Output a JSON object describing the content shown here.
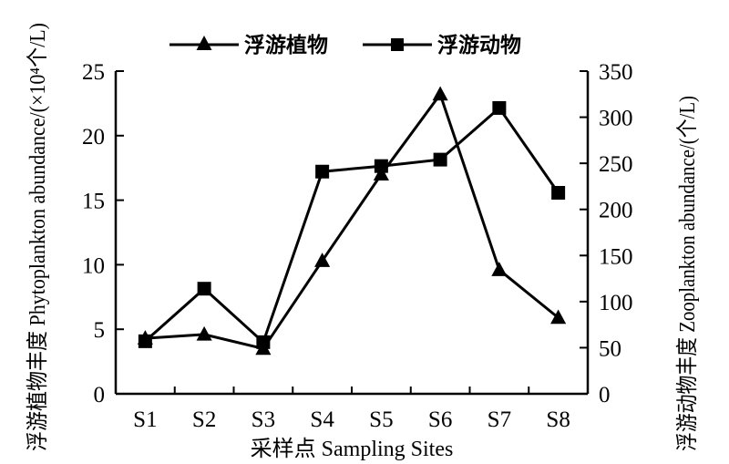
{
  "chart_data": {
    "type": "line",
    "categories": [
      "S1",
      "S2",
      "S3",
      "S4",
      "S5",
      "S6",
      "S7",
      "S8"
    ],
    "xlabel": "采样点 Sampling Sites",
    "ylabel_left": "浮游植物丰度 Phytoplankton  abundance/(×10⁴个/L)",
    "ylabel_right": "浮游动物丰度 Zooplankton abundance/(个/L)",
    "ylim_left": [
      0,
      25
    ],
    "yticks_left": [
      0,
      5,
      10,
      15,
      20,
      25
    ],
    "ylim_right": [
      0,
      350
    ],
    "yticks_right": [
      0,
      50,
      100,
      150,
      200,
      250,
      300,
      350
    ],
    "grid": false,
    "legend_position": "top",
    "series": [
      {
        "name": "浮游植物",
        "axis": "left",
        "marker": "triangle",
        "values": [
          4.3,
          4.6,
          3.5,
          10.3,
          17.0,
          23.2,
          9.6,
          5.9
        ]
      },
      {
        "name": "浮游动物",
        "axis": "right",
        "marker": "square",
        "values": [
          57,
          114,
          56,
          241,
          247,
          254,
          310,
          218
        ]
      }
    ]
  }
}
